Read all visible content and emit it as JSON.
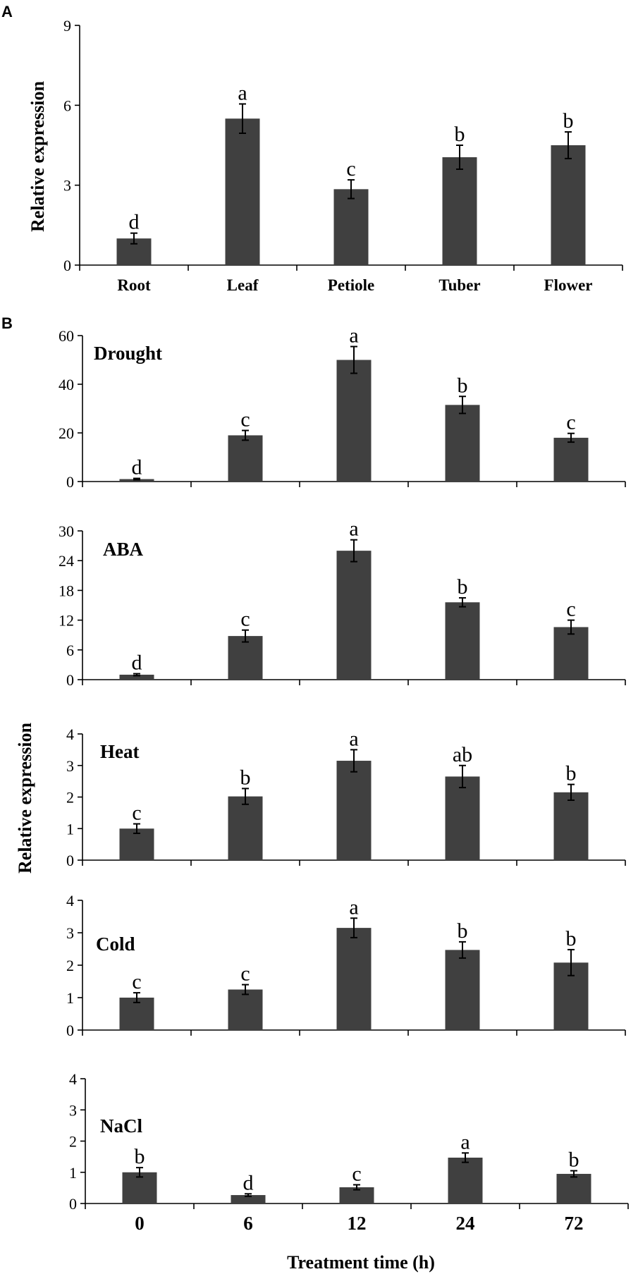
{
  "colors": {
    "bar": "#404040",
    "axis": "#000000"
  },
  "chart_data": [
    {
      "id": "A",
      "panel_label": "A",
      "type": "bar",
      "ylabel": "Relative expression",
      "ylim": [
        0,
        9
      ],
      "yticks": [
        0,
        3,
        6,
        9
      ],
      "categories": [
        "Root",
        "Leaf",
        "Petiole",
        "Tuber",
        "Flower"
      ],
      "values": [
        1.0,
        5.5,
        2.85,
        4.05,
        4.5
      ],
      "errors": [
        0.2,
        0.55,
        0.35,
        0.45,
        0.5
      ],
      "letters": [
        "d",
        "a",
        "c",
        "b",
        "b"
      ]
    },
    {
      "id": "B1",
      "panel_label": "B",
      "treatment": "Drought",
      "type": "bar",
      "ylim": [
        0,
        60
      ],
      "yticks": [
        0,
        20,
        40,
        60
      ],
      "categories": [
        "0",
        "6",
        "12",
        "24",
        "72"
      ],
      "values": [
        1.0,
        19.0,
        50.0,
        31.5,
        18.0
      ],
      "errors": [
        0.3,
        2.0,
        5.5,
        3.5,
        1.8
      ],
      "letters": [
        "d",
        "c",
        "a",
        "b",
        "c"
      ]
    },
    {
      "id": "B2",
      "treatment": "ABA",
      "type": "bar",
      "ylim": [
        0,
        30
      ],
      "yticks": [
        0,
        6,
        12,
        18,
        24,
        30
      ],
      "categories": [
        "0",
        "6",
        "12",
        "24",
        "72"
      ],
      "values": [
        1.0,
        8.8,
        26.0,
        15.6,
        10.6
      ],
      "errors": [
        0.2,
        1.2,
        2.2,
        0.9,
        1.4
      ],
      "letters": [
        "d",
        "c",
        "a",
        "b",
        "c"
      ]
    },
    {
      "id": "B3",
      "treatment": "Heat",
      "type": "bar",
      "ylim": [
        0,
        4
      ],
      "yticks": [
        0,
        1,
        2,
        3,
        4
      ],
      "categories": [
        "0",
        "6",
        "12",
        "24",
        "72"
      ],
      "values": [
        1.0,
        2.02,
        3.15,
        2.65,
        2.15
      ],
      "errors": [
        0.15,
        0.25,
        0.35,
        0.35,
        0.25
      ],
      "letters": [
        "c",
        "b",
        "a",
        "ab",
        "b"
      ]
    },
    {
      "id": "B4",
      "treatment": "Cold",
      "type": "bar",
      "ylim": [
        0,
        4
      ],
      "yticks": [
        0,
        1,
        2,
        3,
        4
      ],
      "categories": [
        "0",
        "6",
        "12",
        "24",
        "72"
      ],
      "values": [
        1.0,
        1.25,
        3.15,
        2.47,
        2.08
      ],
      "errors": [
        0.15,
        0.15,
        0.3,
        0.25,
        0.4
      ],
      "letters": [
        "c",
        "c",
        "a",
        "b",
        "b"
      ]
    },
    {
      "id": "B5",
      "treatment": "NaCl",
      "type": "bar",
      "ylim": [
        0,
        4
      ],
      "yticks": [
        0,
        1,
        2,
        3,
        4
      ],
      "categories": [
        "0",
        "6",
        "12",
        "24",
        "72"
      ],
      "values": [
        1.0,
        0.27,
        0.52,
        1.47,
        0.95
      ],
      "errors": [
        0.15,
        0.04,
        0.08,
        0.15,
        0.1
      ],
      "letters": [
        "b",
        "d",
        "c",
        "a",
        "b"
      ],
      "xlabel": "Treatment time (h)"
    }
  ],
  "labels": {
    "panel_b_ylabel": "Relative expression",
    "panel_b_xlabel": "Treatment time (h)"
  }
}
